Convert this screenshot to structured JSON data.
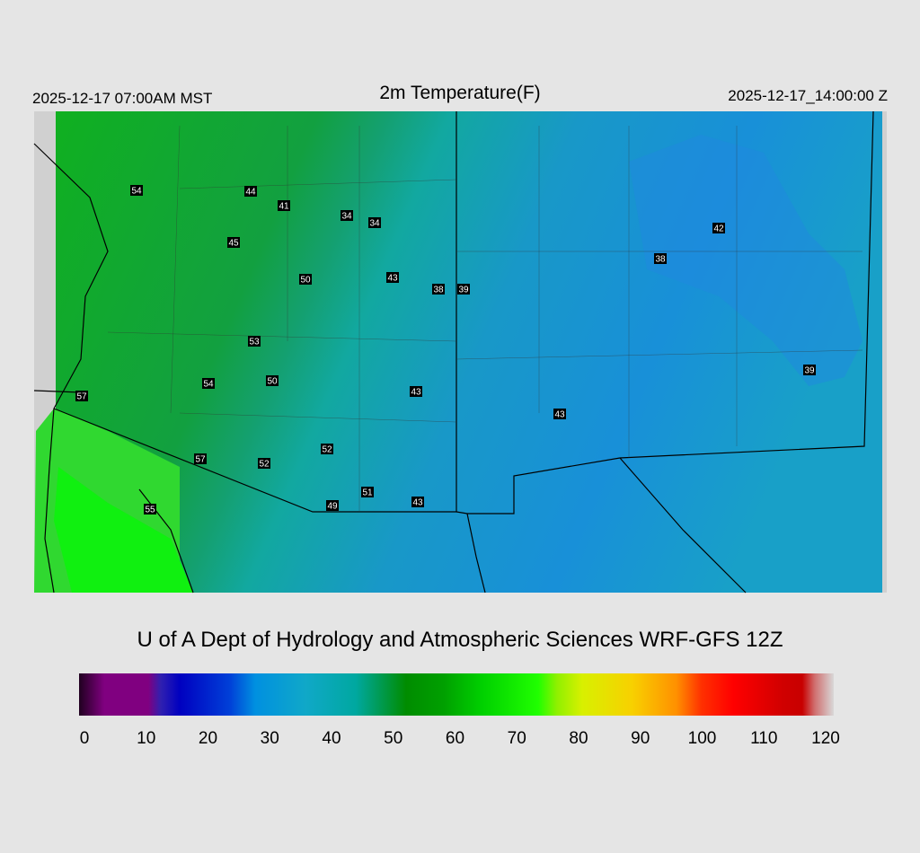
{
  "header": {
    "left": "2025-12-17 07:00AM MST",
    "title": "2m Temperature(F)",
    "right": "2025-12-17_14:00:00 Z"
  },
  "map": {
    "stations": [
      54,
      44,
      41,
      34,
      34,
      45,
      50,
      43,
      38,
      39,
      42,
      38,
      53,
      54,
      50,
      43,
      39,
      57,
      43,
      52,
      57,
      52,
      51,
      49,
      43,
      55
    ]
  },
  "footer": {
    "credit": "U of A Dept of Hydrology and Atmospheric Sciences WRF-GFS 12Z"
  },
  "colorbar": {
    "lim": [
      0,
      120
    ],
    "ticks": [
      0,
      10,
      20,
      30,
      40,
      50,
      60,
      70,
      80,
      90,
      100,
      110,
      120
    ]
  }
}
